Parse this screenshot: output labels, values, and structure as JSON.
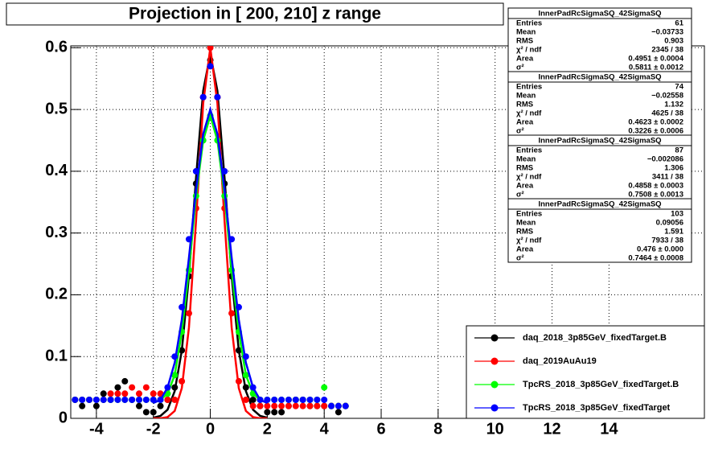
{
  "chart_data": {
    "type": "scatter",
    "title": "Projection in [ 200, 210] z range",
    "xlim": [
      -4.9,
      17.35
    ],
    "ylim": [
      0,
      0.603
    ],
    "xticks": [
      -4,
      -2,
      0,
      2,
      4,
      6,
      8,
      10,
      12,
      14
    ],
    "yticks": [
      0,
      0.1,
      0.2,
      0.3,
      0.4,
      0.5,
      0.6
    ],
    "grid": true,
    "x": [
      -4.75,
      -4.5,
      -4.25,
      -4,
      -3.75,
      -3.5,
      -3.25,
      -3,
      -2.75,
      -2.5,
      -2.25,
      -2,
      -1.75,
      -1.5,
      -1.25,
      -1,
      -0.75,
      -0.5,
      -0.25,
      0,
      0.25,
      0.5,
      0.75,
      1,
      1.25,
      1.5,
      1.75,
      2,
      2.25,
      2.5,
      2.75,
      3,
      3.25,
      3.5,
      3.75,
      4,
      4.25,
      4.5,
      4.75
    ],
    "fit_x": [
      -2,
      -1.75,
      -1.5,
      -1.25,
      -1,
      -0.75,
      -0.5,
      -0.25,
      0,
      0.25,
      0.5,
      0.75,
      1,
      1.25,
      1.5,
      1.75,
      2
    ],
    "series": [
      {
        "name": "daq_2018_3p85GeV_fixedTarget.B",
        "color": "#000000",
        "values": [
          0.03,
          0.02,
          0.03,
          0.02,
          0.04,
          0.03,
          0.05,
          0.06,
          0.03,
          0.02,
          0.01,
          0.01,
          0.02,
          0.03,
          0.05,
          0.11,
          0.23,
          0.38,
          0.52,
          0.58,
          0.52,
          0.38,
          0.23,
          0.11,
          0.05,
          0.03,
          0.02,
          0.01,
          0.01,
          0.01,
          0.02,
          0.03,
          0.03,
          0.02,
          0.02,
          0.02,
          0.02,
          0.01,
          0.02
        ],
        "fit": [
          0.001,
          0.004,
          0.014,
          0.044,
          0.11,
          0.23,
          0.39,
          0.53,
          0.59,
          0.53,
          0.39,
          0.23,
          0.11,
          0.044,
          0.014,
          0.004,
          0.001
        ],
        "stats": {
          "name": "InnerPadRcSigmaSQ_42SigmaSQ",
          "rows": [
            [
              "Entries",
              "61"
            ],
            [
              "Mean",
              "−0.03733"
            ],
            [
              "RMS",
              "0.903"
            ],
            [
              "χ² / ndf",
              "2345 / 38"
            ],
            [
              "Area",
              "0.4951 ± 0.0004"
            ],
            [
              "σ²",
              "0.5811 ± 0.0012"
            ]
          ]
        }
      },
      {
        "name": "daq_2019AuAu19",
        "color": "#ff0000",
        "values": [
          0.03,
          0.03,
          0.03,
          0.03,
          0.03,
          0.04,
          0.04,
          0.04,
          0.05,
          0.04,
          0.05,
          0.04,
          0.04,
          0.03,
          0.03,
          0.06,
          0.17,
          0.34,
          0.52,
          0.6,
          0.52,
          0.34,
          0.17,
          0.06,
          0.03,
          0.02,
          0.02,
          0.02,
          0.02,
          0.02,
          0.02,
          0.02,
          0.02,
          0.02,
          0.02,
          0.02,
          0.02,
          0.02,
          0.02
        ],
        "fit": [
          0,
          0,
          0.002,
          0.012,
          0.049,
          0.147,
          0.32,
          0.51,
          0.6,
          0.51,
          0.32,
          0.147,
          0.049,
          0.012,
          0.002,
          0,
          0
        ],
        "stats": {
          "name": "InnerPadRcSigmaSQ_42SigmaSQ",
          "rows": [
            [
              "Entries",
              "74"
            ],
            [
              "Mean",
              "−0.02558"
            ],
            [
              "RMS",
              "1.132"
            ],
            [
              "χ² / ndf",
              "4625 / 38"
            ],
            [
              "Area",
              "0.4623 ± 0.0002"
            ],
            [
              "σ²",
              "0.3226 ± 0.0006"
            ]
          ]
        }
      },
      {
        "name": "TpcRS_2018_3p85GeV_fixedTarget.B",
        "color": "#00ff00",
        "values": [
          0.03,
          0.03,
          0.03,
          0.03,
          0.03,
          0.03,
          0.03,
          0.03,
          0.03,
          0.03,
          0.03,
          0.03,
          0.03,
          0.04,
          0.07,
          0.14,
          0.24,
          0.36,
          0.45,
          0.49,
          0.45,
          0.36,
          0.24,
          0.14,
          0.07,
          0.04,
          0.03,
          0.03,
          0.03,
          0.03,
          0.03,
          0.03,
          0.03,
          0.03,
          0.03,
          0.05,
          0.02,
          0.02,
          0.02
        ],
        "fit": [
          0.025,
          0.03,
          0.04,
          0.07,
          0.14,
          0.24,
          0.36,
          0.45,
          0.49,
          0.45,
          0.36,
          0.24,
          0.14,
          0.07,
          0.04,
          0.03,
          0.025
        ],
        "stats": {
          "name": "InnerPadRcSigmaSQ_42SigmaSQ",
          "rows": [
            [
              "Entries",
              "87"
            ],
            [
              "Mean",
              "−0.002086"
            ],
            [
              "RMS",
              "1.306"
            ],
            [
              "χ² / ndf",
              "3411 / 38"
            ],
            [
              "Area",
              "0.4858 ± 0.0003"
            ],
            [
              "σ²",
              "0.7508 ± 0.0013"
            ]
          ]
        }
      },
      {
        "name": "TpcRS_2018_3p85GeV_fixedTarget",
        "color": "#0000ff",
        "values": [
          0.03,
          0.03,
          0.03,
          0.03,
          0.03,
          0.03,
          0.03,
          0.03,
          0.03,
          0.03,
          0.03,
          0.03,
          0.03,
          0.05,
          0.1,
          0.18,
          0.29,
          0.4,
          0.52,
          0.57,
          0.52,
          0.4,
          0.29,
          0.18,
          0.1,
          0.05,
          0.03,
          0.03,
          0.03,
          0.03,
          0.03,
          0.03,
          0.03,
          0.03,
          0.03,
          0.03,
          0.02,
          0.02,
          0.02
        ],
        "fit": [
          0.025,
          0.03,
          0.05,
          0.09,
          0.16,
          0.26,
          0.37,
          0.46,
          0.5,
          0.46,
          0.37,
          0.26,
          0.16,
          0.09,
          0.05,
          0.03,
          0.025
        ],
        "stats": {
          "name": "InnerPadRcSigmaSQ_42SigmaSQ",
          "rows": [
            [
              "Entries",
              "103"
            ],
            [
              "Mean",
              "0.09056"
            ],
            [
              "RMS",
              "1.591"
            ],
            [
              "χ² / ndf",
              "7933 / 38"
            ],
            [
              "Area",
              "0.476 ± 0.000"
            ],
            [
              "σ²",
              "0.7464 ± 0.0008"
            ]
          ]
        }
      }
    ]
  }
}
